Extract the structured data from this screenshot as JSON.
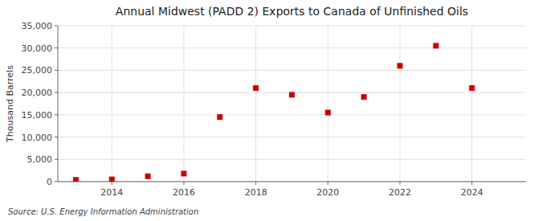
{
  "chart_data": {
    "type": "scatter",
    "title": "Annual Midwest (PADD 2) Exports to Canada of Unfinished Oils",
    "ylabel": "Thousand Barrels",
    "source": "Source: U.S. Energy Information Administration",
    "x": [
      2013,
      2014,
      2015,
      2016,
      2017,
      2018,
      2019,
      2020,
      2021,
      2022,
      2023,
      2024
    ],
    "values": [
      400,
      500,
      1200,
      1800,
      14500,
      21000,
      19500,
      15500,
      19000,
      26000,
      30500,
      21000
    ],
    "color": "#cc0000",
    "marker": "square",
    "grid": true,
    "xlim": [
      2012.5,
      2025.5
    ],
    "xticks": [
      2014,
      2016,
      2018,
      2020,
      2022,
      2024
    ],
    "ylim": [
      0,
      35000
    ],
    "yticks": [
      0,
      {
        "value": 5000,
        "label": "5,000"
      },
      {
        "value": 10000,
        "label": "10,000"
      },
      {
        "value": 15000,
        "label": "15,000"
      },
      {
        "value": 20000,
        "label": "20,000"
      },
      {
        "value": 25000,
        "label": "25,000"
      },
      {
        "value": 30000,
        "label": "30,000"
      },
      {
        "value": 35000,
        "label": "35,000"
      }
    ]
  }
}
